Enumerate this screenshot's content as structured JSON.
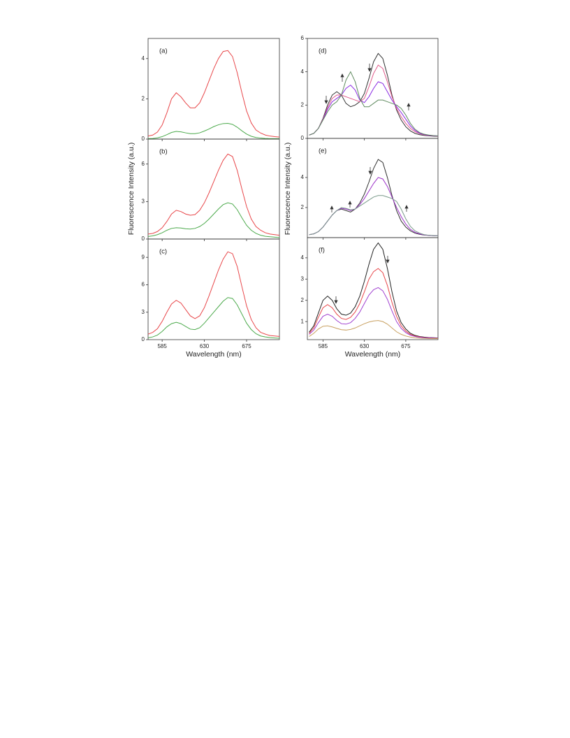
{
  "chart_data": [
    {
      "type": "line",
      "label": "(a)",
      "y_label": "Fluorescence Intensity (a.u.)",
      "x": [
        570,
        575,
        580,
        585,
        590,
        595,
        600,
        605,
        610,
        615,
        620,
        625,
        630,
        635,
        640,
        645,
        650,
        655,
        660,
        665,
        670,
        675,
        680,
        685,
        690,
        695,
        700,
        705,
        710
      ],
      "xlim": [
        570,
        710
      ],
      "xticks": [
        585,
        630,
        675
      ],
      "ylim": [
        0,
        5
      ],
      "yticks": [
        0,
        2,
        4
      ],
      "series": [
        {
          "color": "#e8474a",
          "values": [
            0.15,
            0.2,
            0.35,
            0.7,
            1.3,
            2.0,
            2.3,
            2.1,
            1.8,
            1.55,
            1.55,
            1.8,
            2.3,
            2.9,
            3.5,
            4.0,
            4.35,
            4.4,
            4.1,
            3.3,
            2.3,
            1.4,
            0.8,
            0.45,
            0.3,
            0.2,
            0.15,
            0.12,
            0.1
          ]
        },
        {
          "color": "#4caa4c",
          "values": [
            0.02,
            0.03,
            0.06,
            0.12,
            0.22,
            0.33,
            0.38,
            0.36,
            0.31,
            0.27,
            0.27,
            0.31,
            0.4,
            0.5,
            0.62,
            0.71,
            0.77,
            0.78,
            0.73,
            0.59,
            0.41,
            0.25,
            0.14,
            0.08,
            0.05,
            0.03,
            0.02,
            0.02,
            0.02
          ]
        }
      ]
    },
    {
      "type": "line",
      "label": "(b)",
      "x": [
        570,
        575,
        580,
        585,
        590,
        595,
        600,
        605,
        610,
        615,
        620,
        625,
        630,
        635,
        640,
        645,
        650,
        655,
        660,
        665,
        670,
        675,
        680,
        685,
        690,
        695,
        700,
        705,
        710
      ],
      "xlim": [
        570,
        710
      ],
      "xticks": [
        585,
        630,
        675
      ],
      "ylim": [
        0,
        8
      ],
      "yticks": [
        0,
        3,
        6
      ],
      "series": [
        {
          "color": "#e8474a",
          "values": [
            0.4,
            0.45,
            0.6,
            0.9,
            1.4,
            2.0,
            2.3,
            2.2,
            2.0,
            1.9,
            1.95,
            2.3,
            2.9,
            3.7,
            4.6,
            5.5,
            6.3,
            6.8,
            6.6,
            5.5,
            4.0,
            2.6,
            1.6,
            1.0,
            0.7,
            0.5,
            0.4,
            0.35,
            0.3
          ]
        },
        {
          "color": "#4caa4c",
          "values": [
            0.2,
            0.25,
            0.35,
            0.5,
            0.7,
            0.85,
            0.9,
            0.88,
            0.82,
            0.8,
            0.85,
            1.0,
            1.25,
            1.6,
            2.0,
            2.4,
            2.75,
            2.9,
            2.8,
            2.35,
            1.7,
            1.1,
            0.7,
            0.45,
            0.3,
            0.22,
            0.18,
            0.15,
            0.12
          ]
        }
      ]
    },
    {
      "type": "line",
      "label": "(c)",
      "x_label": "Wavelength (nm)",
      "x": [
        570,
        575,
        580,
        585,
        590,
        595,
        600,
        605,
        610,
        615,
        620,
        625,
        630,
        635,
        640,
        645,
        650,
        655,
        660,
        665,
        670,
        675,
        680,
        685,
        690,
        695,
        700,
        705,
        710
      ],
      "xlim": [
        570,
        710
      ],
      "xticks": [
        585,
        630,
        675
      ],
      "ylim": [
        0,
        11
      ],
      "yticks": [
        0,
        3,
        6,
        9
      ],
      "series": [
        {
          "color": "#e8474a",
          "values": [
            0.6,
            0.8,
            1.2,
            2.0,
            3.0,
            3.9,
            4.3,
            4.0,
            3.3,
            2.6,
            2.3,
            2.6,
            3.5,
            4.8,
            6.2,
            7.6,
            8.8,
            9.6,
            9.4,
            8.0,
            5.8,
            3.7,
            2.2,
            1.3,
            0.8,
            0.6,
            0.45,
            0.4,
            0.35
          ]
        },
        {
          "color": "#4caa4c",
          "values": [
            0.2,
            0.3,
            0.5,
            0.9,
            1.4,
            1.75,
            1.9,
            1.75,
            1.45,
            1.15,
            1.1,
            1.3,
            1.8,
            2.4,
            3.0,
            3.6,
            4.2,
            4.6,
            4.5,
            3.8,
            2.8,
            1.8,
            1.1,
            0.65,
            0.4,
            0.3,
            0.22,
            0.18,
            0.15
          ]
        }
      ]
    },
    {
      "type": "line",
      "label": "(d)",
      "y_label": "Fluorescence Intensity (a.u.)",
      "x": [
        570,
        575,
        580,
        585,
        590,
        595,
        600,
        605,
        610,
        615,
        620,
        625,
        630,
        635,
        640,
        645,
        650,
        655,
        660,
        665,
        670,
        675,
        680,
        685,
        690,
        695,
        700,
        705,
        710
      ],
      "xlim": [
        568,
        710
      ],
      "xticks": [
        585,
        630,
        675
      ],
      "ylim": [
        0,
        6
      ],
      "yticks": [
        0,
        2,
        4,
        6
      ],
      "series": [
        {
          "color": "#333333",
          "values": [
            0.2,
            0.3,
            0.6,
            1.2,
            2.0,
            2.6,
            2.8,
            2.6,
            2.1,
            1.9,
            2.0,
            2.2,
            2.7,
            3.6,
            4.6,
            5.1,
            4.8,
            3.8,
            2.6,
            1.7,
            1.1,
            0.7,
            0.45,
            0.3,
            0.22,
            0.18,
            0.15,
            0.13,
            0.12
          ]
        },
        {
          "color": "#e05a8a",
          "values": [
            0.2,
            0.3,
            0.6,
            1.15,
            1.85,
            2.4,
            2.6,
            2.6,
            2.5,
            2.4,
            2.3,
            2.2,
            2.4,
            3.1,
            3.9,
            4.4,
            4.2,
            3.4,
            2.5,
            1.8,
            1.3,
            0.9,
            0.6,
            0.4,
            0.28,
            0.21,
            0.17,
            0.15,
            0.13
          ]
        },
        {
          "color": "#8a2be2",
          "values": [
            0.2,
            0.3,
            0.6,
            1.12,
            1.75,
            2.2,
            2.4,
            2.6,
            3.0,
            3.2,
            2.9,
            2.3,
            2.15,
            2.5,
            3.0,
            3.4,
            3.3,
            2.8,
            2.3,
            1.9,
            1.55,
            1.15,
            0.75,
            0.48,
            0.31,
            0.23,
            0.18,
            0.16,
            0.14
          ]
        },
        {
          "color": "#5f8a5f",
          "values": [
            0.2,
            0.3,
            0.6,
            1.1,
            1.6,
            2.0,
            2.2,
            2.6,
            3.5,
            4.0,
            3.4,
            2.4,
            1.9,
            1.9,
            2.1,
            2.3,
            2.3,
            2.2,
            2.1,
            2.0,
            1.8,
            1.4,
            0.9,
            0.55,
            0.35,
            0.25,
            0.2,
            0.17,
            0.15
          ]
        }
      ]
    },
    {
      "type": "line",
      "label": "(e)",
      "x": [
        570,
        575,
        580,
        585,
        590,
        595,
        600,
        605,
        610,
        615,
        620,
        625,
        630,
        635,
        640,
        645,
        650,
        655,
        660,
        665,
        670,
        675,
        680,
        685,
        690,
        695,
        700,
        705,
        710
      ],
      "xlim": [
        568,
        710
      ],
      "xticks": [
        585,
        630,
        675
      ],
      "ylim": [
        0,
        6.6
      ],
      "yticks": [
        2,
        4
      ],
      "series": [
        {
          "color": "#333333",
          "values": [
            0.2,
            0.25,
            0.4,
            0.7,
            1.1,
            1.5,
            1.8,
            1.9,
            1.8,
            1.7,
            1.9,
            2.3,
            2.9,
            3.7,
            4.6,
            5.2,
            5.0,
            4.0,
            2.8,
            1.8,
            1.1,
            0.7,
            0.45,
            0.3,
            0.22,
            0.17,
            0.15,
            0.13,
            0.12
          ]
        },
        {
          "color": "#9b30c8",
          "values": [
            0.2,
            0.25,
            0.4,
            0.7,
            1.1,
            1.5,
            1.8,
            1.95,
            1.9,
            1.8,
            1.9,
            2.2,
            2.6,
            3.1,
            3.6,
            4.0,
            3.9,
            3.4,
            2.7,
            2.0,
            1.4,
            0.9,
            0.55,
            0.35,
            0.25,
            0.18,
            0.15,
            0.13,
            0.12
          ]
        },
        {
          "color": "#7a9a8a",
          "values": [
            0.2,
            0.25,
            0.4,
            0.7,
            1.1,
            1.5,
            1.8,
            2.0,
            1.95,
            1.85,
            1.9,
            2.1,
            2.3,
            2.5,
            2.7,
            2.8,
            2.8,
            2.7,
            2.6,
            2.4,
            1.9,
            1.25,
            0.75,
            0.45,
            0.3,
            0.2,
            0.16,
            0.14,
            0.12
          ]
        }
      ]
    },
    {
      "type": "line",
      "label": "(f)",
      "x_label": "Wavelength (nm)",
      "x": [
        570,
        575,
        580,
        585,
        590,
        595,
        600,
        605,
        610,
        615,
        620,
        625,
        630,
        635,
        640,
        645,
        650,
        655,
        660,
        665,
        670,
        675,
        680,
        685,
        690,
        695,
        700,
        705,
        710
      ],
      "xlim": [
        568,
        710
      ],
      "xticks": [
        585,
        630,
        675
      ],
      "ylim": [
        0.15,
        4.95
      ],
      "yticks": [
        1,
        2,
        3,
        4
      ],
      "series": [
        {
          "color": "#222222",
          "values": [
            0.5,
            0.8,
            1.4,
            2.0,
            2.2,
            2.0,
            1.6,
            1.35,
            1.3,
            1.4,
            1.7,
            2.2,
            2.9,
            3.7,
            4.4,
            4.7,
            4.4,
            3.5,
            2.4,
            1.5,
            0.95,
            0.65,
            0.45,
            0.35,
            0.3,
            0.27,
            0.25,
            0.24,
            0.23
          ]
        },
        {
          "color": "#e8474a",
          "values": [
            0.45,
            0.7,
            1.2,
            1.65,
            1.8,
            1.65,
            1.35,
            1.15,
            1.1,
            1.2,
            1.45,
            1.85,
            2.4,
            3.0,
            3.35,
            3.5,
            3.3,
            2.7,
            1.9,
            1.25,
            0.8,
            0.55,
            0.4,
            0.32,
            0.28,
            0.25,
            0.24,
            0.23,
            0.22
          ]
        },
        {
          "color": "#a040d0",
          "values": [
            0.4,
            0.6,
            0.95,
            1.25,
            1.35,
            1.25,
            1.05,
            0.9,
            0.88,
            0.95,
            1.15,
            1.45,
            1.85,
            2.25,
            2.5,
            2.6,
            2.45,
            2.05,
            1.5,
            1.0,
            0.68,
            0.48,
            0.36,
            0.3,
            0.26,
            0.24,
            0.23,
            0.22,
            0.21
          ]
        },
        {
          "color": "#c8a060",
          "values": [
            0.3,
            0.45,
            0.65,
            0.78,
            0.8,
            0.75,
            0.68,
            0.62,
            0.6,
            0.63,
            0.7,
            0.8,
            0.9,
            0.98,
            1.03,
            1.05,
            1.0,
            0.88,
            0.7,
            0.52,
            0.4,
            0.32,
            0.27,
            0.24,
            0.22,
            0.21,
            0.2,
            0.2,
            0.2
          ]
        }
      ]
    }
  ]
}
